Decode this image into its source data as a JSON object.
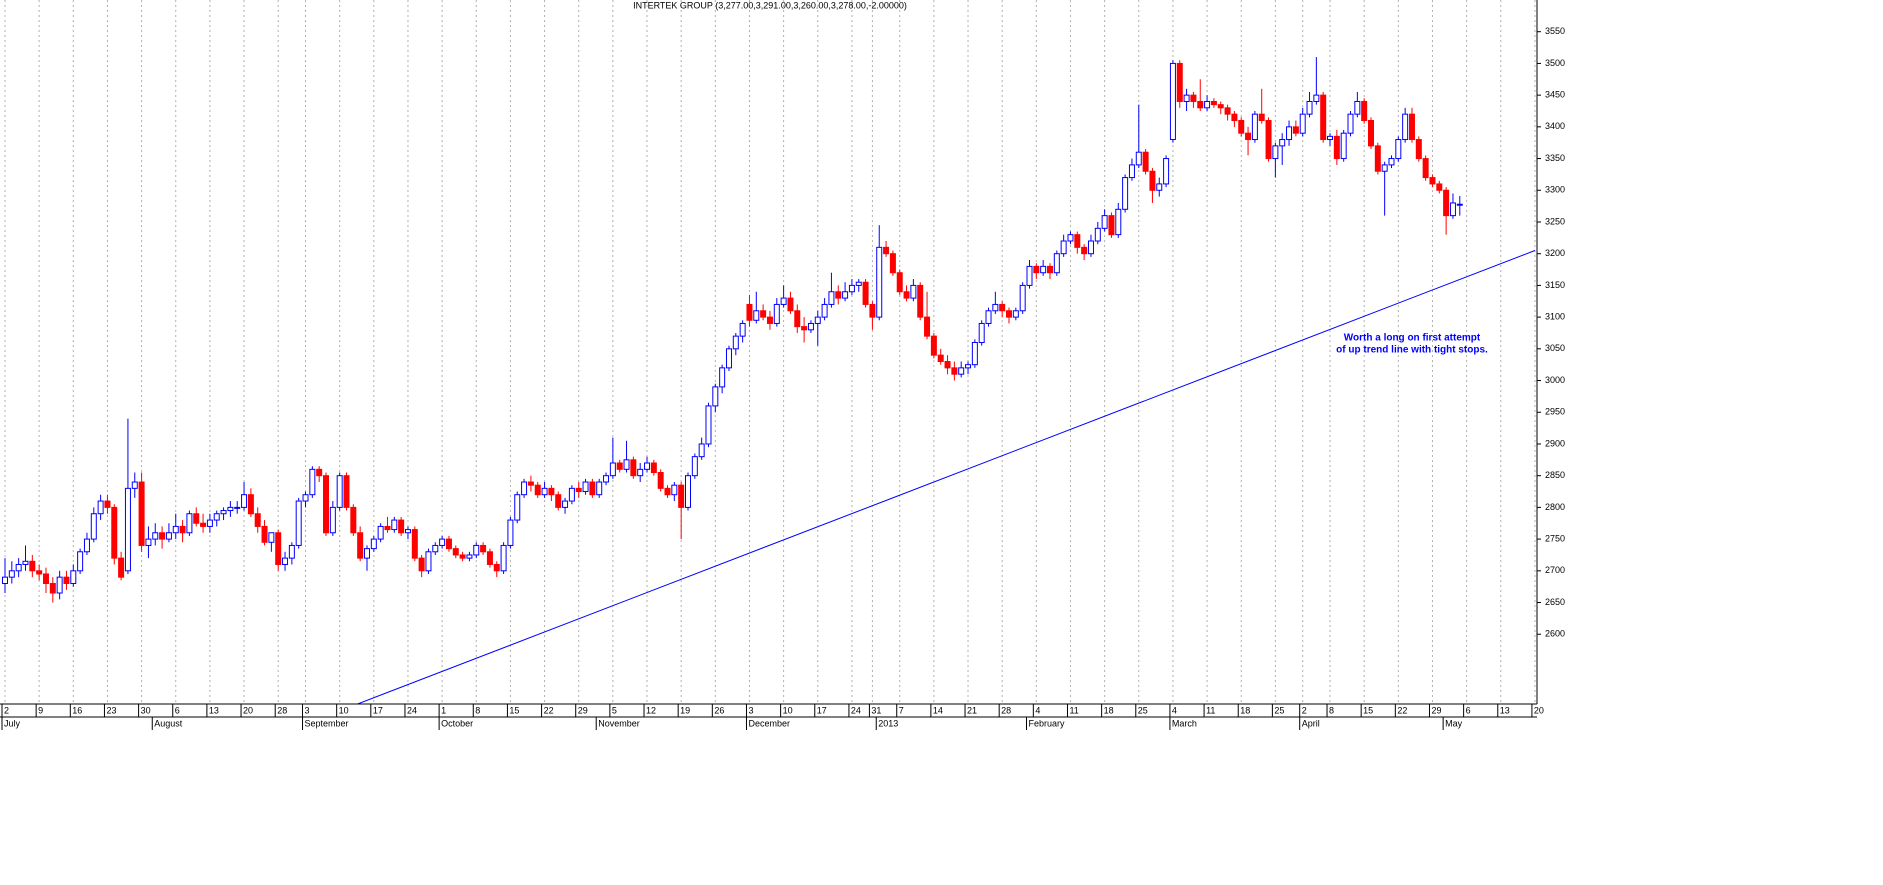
{
  "chart_data": {
    "type": "candlestick",
    "title": "INTERTEK GROUP (3,277.00,3,291.00,3,260.00,3,278.00,-2.00000)",
    "up_color": "#0000ff",
    "down_color": "#ff0000",
    "ylim": [
      2490,
      3600
    ],
    "yticks": [
      2600,
      2650,
      2700,
      2750,
      2800,
      2850,
      2900,
      2950,
      3000,
      3050,
      3100,
      3150,
      3200,
      3250,
      3300,
      3350,
      3400,
      3450,
      3500,
      3550
    ],
    "categories": [
      "2",
      null,
      null,
      null,
      null,
      "9",
      null,
      null,
      null,
      null,
      "16",
      null,
      null,
      null,
      null,
      "23",
      null,
      null,
      null,
      null,
      "30",
      null,
      null,
      null,
      null,
      "6",
      null,
      null,
      null,
      null,
      "13",
      null,
      null,
      null,
      null,
      "20",
      null,
      null,
      null,
      null,
      "28",
      null,
      null,
      null,
      "3",
      null,
      null,
      null,
      null,
      "10",
      null,
      null,
      null,
      null,
      "17",
      null,
      null,
      null,
      null,
      "24",
      null,
      null,
      null,
      null,
      "1",
      null,
      null,
      null,
      null,
      "8",
      null,
      null,
      null,
      null,
      "15",
      null,
      null,
      null,
      null,
      "22",
      null,
      null,
      null,
      null,
      "29",
      null,
      null,
      null,
      null,
      "5",
      null,
      null,
      null,
      null,
      "12",
      null,
      null,
      null,
      null,
      "19",
      null,
      null,
      null,
      null,
      "26",
      null,
      null,
      null,
      null,
      "3",
      null,
      null,
      null,
      null,
      "10",
      null,
      null,
      null,
      null,
      "17",
      null,
      null,
      null,
      null,
      "24",
      null,
      null,
      "31",
      null,
      null,
      null,
      "7",
      null,
      null,
      null,
      null,
      "14",
      null,
      null,
      null,
      null,
      "21",
      null,
      null,
      null,
      null,
      "28",
      null,
      null,
      null,
      null,
      "4",
      null,
      null,
      null,
      null,
      "11",
      null,
      null,
      null,
      null,
      "18",
      null,
      null,
      null,
      null,
      "25",
      null,
      null,
      null,
      null,
      "4",
      null,
      null,
      null,
      null,
      "11",
      null,
      null,
      null,
      null,
      "18",
      null,
      null,
      null,
      null,
      "25",
      null,
      null,
      null,
      "2",
      null,
      null,
      null,
      "8",
      null,
      null,
      null,
      null,
      "15",
      null,
      null,
      null,
      null,
      "22",
      null,
      null,
      null,
      null,
      "29",
      null,
      null,
      null,
      null,
      "6",
      null,
      null,
      null,
      null,
      "13",
      null,
      null,
      null,
      null,
      "20"
    ],
    "months": [
      {
        "label": "July",
        "at": 0
      },
      {
        "label": "August",
        "at": 22
      },
      {
        "label": "September",
        "at": 44
      },
      {
        "label": "October",
        "at": 64
      },
      {
        "label": "November",
        "at": 87
      },
      {
        "label": "December",
        "at": 109
      },
      {
        "label": "2013",
        "at": 128
      },
      {
        "label": "February",
        "at": 150
      },
      {
        "label": "March",
        "at": 171
      },
      {
        "label": "April",
        "at": 190
      },
      {
        "label": "May",
        "at": 211
      }
    ],
    "ohlc": [
      [
        2680,
        2720,
        2665,
        2690
      ],
      [
        2690,
        2715,
        2680,
        2700
      ],
      [
        2700,
        2720,
        2690,
        2710
      ],
      [
        2710,
        2740,
        2700,
        2715
      ],
      [
        2715,
        2725,
        2690,
        2700
      ],
      [
        2700,
        2710,
        2685,
        2695
      ],
      [
        2695,
        2705,
        2665,
        2680
      ],
      [
        2680,
        2690,
        2650,
        2665
      ],
      [
        2665,
        2700,
        2655,
        2690
      ],
      [
        2690,
        2700,
        2670,
        2680
      ],
      [
        2680,
        2710,
        2675,
        2700
      ],
      [
        2700,
        2735,
        2695,
        2730
      ],
      [
        2730,
        2760,
        2725,
        2750
      ],
      [
        2750,
        2800,
        2745,
        2790
      ],
      [
        2790,
        2820,
        2780,
        2810
      ],
      [
        2810,
        2820,
        2790,
        2800
      ],
      [
        2800,
        2805,
        2710,
        2720
      ],
      [
        2720,
        2730,
        2685,
        2690
      ],
      [
        2700,
        2940,
        2695,
        2830
      ],
      [
        2830,
        2855,
        2815,
        2840
      ],
      [
        2840,
        2855,
        2730,
        2740
      ],
      [
        2740,
        2770,
        2720,
        2750
      ],
      [
        2750,
        2775,
        2740,
        2760
      ],
      [
        2760,
        2770,
        2735,
        2750
      ],
      [
        2750,
        2775,
        2745,
        2760
      ],
      [
        2760,
        2790,
        2750,
        2770
      ],
      [
        2770,
        2780,
        2745,
        2760
      ],
      [
        2760,
        2795,
        2755,
        2790
      ],
      [
        2790,
        2800,
        2770,
        2775
      ],
      [
        2775,
        2790,
        2760,
        2770
      ],
      [
        2770,
        2790,
        2760,
        2780
      ],
      [
        2780,
        2795,
        2770,
        2790
      ],
      [
        2790,
        2800,
        2780,
        2795
      ],
      [
        2795,
        2810,
        2785,
        2800
      ],
      [
        2800,
        2810,
        2790,
        2800
      ],
      [
        2800,
        2840,
        2795,
        2820
      ],
      [
        2820,
        2830,
        2785,
        2790
      ],
      [
        2790,
        2800,
        2760,
        2770
      ],
      [
        2770,
        2780,
        2740,
        2745
      ],
      [
        2745,
        2760,
        2730,
        2760
      ],
      [
        2760,
        2765,
        2700,
        2710
      ],
      [
        2710,
        2730,
        2700,
        2720
      ],
      [
        2720,
        2745,
        2710,
        2740
      ],
      [
        2740,
        2815,
        2735,
        2810
      ],
      [
        2810,
        2825,
        2800,
        2820
      ],
      [
        2820,
        2865,
        2815,
        2860
      ],
      [
        2860,
        2865,
        2840,
        2850
      ],
      [
        2850,
        2855,
        2755,
        2760
      ],
      [
        2760,
        2810,
        2755,
        2800
      ],
      [
        2800,
        2855,
        2795,
        2850
      ],
      [
        2850,
        2855,
        2795,
        2800
      ],
      [
        2800,
        2805,
        2755,
        2760
      ],
      [
        2760,
        2770,
        2715,
        2720
      ],
      [
        2720,
        2740,
        2700,
        2735
      ],
      [
        2735,
        2755,
        2730,
        2750
      ],
      [
        2750,
        2775,
        2745,
        2770
      ],
      [
        2770,
        2785,
        2760,
        2765
      ],
      [
        2765,
        2785,
        2760,
        2780
      ],
      [
        2780,
        2785,
        2755,
        2760
      ],
      [
        2760,
        2770,
        2750,
        2765
      ],
      [
        2765,
        2770,
        2715,
        2720
      ],
      [
        2720,
        2725,
        2690,
        2700
      ],
      [
        2700,
        2735,
        2695,
        2730
      ],
      [
        2730,
        2745,
        2725,
        2740
      ],
      [
        2740,
        2755,
        2735,
        2750
      ],
      [
        2750,
        2755,
        2730,
        2735
      ],
      [
        2735,
        2740,
        2720,
        2725
      ],
      [
        2725,
        2730,
        2715,
        2720
      ],
      [
        2720,
        2730,
        2715,
        2725
      ],
      [
        2725,
        2745,
        2720,
        2740
      ],
      [
        2740,
        2745,
        2725,
        2730
      ],
      [
        2730,
        2735,
        2705,
        2710
      ],
      [
        2710,
        2715,
        2690,
        2700
      ],
      [
        2700,
        2745,
        2695,
        2740
      ],
      [
        2740,
        2785,
        2735,
        2780
      ],
      [
        2780,
        2825,
        2775,
        2820
      ],
      [
        2820,
        2845,
        2815,
        2840
      ],
      [
        2840,
        2850,
        2825,
        2835
      ],
      [
        2835,
        2840,
        2815,
        2820
      ],
      [
        2820,
        2840,
        2815,
        2830
      ],
      [
        2830,
        2835,
        2810,
        2820
      ],
      [
        2820,
        2825,
        2795,
        2800
      ],
      [
        2800,
        2815,
        2790,
        2810
      ],
      [
        2810,
        2835,
        2805,
        2830
      ],
      [
        2830,
        2840,
        2815,
        2825
      ],
      [
        2825,
        2845,
        2820,
        2840
      ],
      [
        2840,
        2845,
        2815,
        2820
      ],
      [
        2820,
        2845,
        2815,
        2840
      ],
      [
        2840,
        2855,
        2835,
        2850
      ],
      [
        2850,
        2910,
        2845,
        2870
      ],
      [
        2870,
        2875,
        2855,
        2860
      ],
      [
        2860,
        2905,
        2855,
        2875
      ],
      [
        2875,
        2880,
        2845,
        2850
      ],
      [
        2850,
        2870,
        2840,
        2860
      ],
      [
        2860,
        2880,
        2855,
        2870
      ],
      [
        2870,
        2875,
        2850,
        2855
      ],
      [
        2855,
        2860,
        2825,
        2830
      ],
      [
        2830,
        2835,
        2815,
        2820
      ],
      [
        2820,
        2840,
        2810,
        2835
      ],
      [
        2835,
        2840,
        2750,
        2800
      ],
      [
        2800,
        2855,
        2795,
        2850
      ],
      [
        2850,
        2885,
        2845,
        2880
      ],
      [
        2880,
        2910,
        2875,
        2900
      ],
      [
        2900,
        2965,
        2895,
        2960
      ],
      [
        2960,
        2995,
        2950,
        2990
      ],
      [
        2990,
        3025,
        2980,
        3020
      ],
      [
        3020,
        3055,
        3015,
        3050
      ],
      [
        3050,
        3075,
        3040,
        3070
      ],
      [
        3070,
        3095,
        3060,
        3090
      ],
      [
        3120,
        3135,
        3085,
        3095
      ],
      [
        3095,
        3140,
        3090,
        3110
      ],
      [
        3110,
        3120,
        3095,
        3100
      ],
      [
        3100,
        3110,
        3080,
        3090
      ],
      [
        3090,
        3130,
        3085,
        3120
      ],
      [
        3120,
        3150,
        3115,
        3130
      ],
      [
        3130,
        3140,
        3105,
        3110
      ],
      [
        3110,
        3120,
        3075,
        3085
      ],
      [
        3085,
        3100,
        3060,
        3080
      ],
      [
        3080,
        3095,
        3075,
        3090
      ],
      [
        3090,
        3110,
        3055,
        3100
      ],
      [
        3100,
        3130,
        3095,
        3120
      ],
      [
        3120,
        3170,
        3115,
        3140
      ],
      [
        3140,
        3150,
        3120,
        3130
      ],
      [
        3130,
        3155,
        3125,
        3140
      ],
      [
        3140,
        3160,
        3135,
        3150
      ],
      [
        3150,
        3160,
        3140,
        3155
      ],
      [
        3155,
        3160,
        3115,
        3120
      ],
      [
        3120,
        3125,
        3080,
        3100
      ],
      [
        3100,
        3245,
        3095,
        3210
      ],
      [
        3210,
        3220,
        3195,
        3200
      ],
      [
        3200,
        3205,
        3165,
        3170
      ],
      [
        3170,
        3175,
        3135,
        3140
      ],
      [
        3140,
        3150,
        3125,
        3130
      ],
      [
        3130,
        3160,
        3125,
        3150
      ],
      [
        3150,
        3155,
        3095,
        3100
      ],
      [
        3100,
        3140,
        3065,
        3070
      ],
      [
        3070,
        3075,
        3035,
        3040
      ],
      [
        3040,
        3050,
        3025,
        3030
      ],
      [
        3030,
        3040,
        3010,
        3020
      ],
      [
        3020,
        3030,
        3000,
        3010
      ],
      [
        3010,
        3030,
        3005,
        3020
      ],
      [
        3020,
        3030,
        3010,
        3025
      ],
      [
        3025,
        3065,
        3020,
        3060
      ],
      [
        3060,
        3095,
        3055,
        3090
      ],
      [
        3090,
        3115,
        3085,
        3110
      ],
      [
        3110,
        3140,
        3105,
        3120
      ],
      [
        3120,
        3125,
        3100,
        3110
      ],
      [
        3110,
        3115,
        3090,
        3100
      ],
      [
        3100,
        3115,
        3095,
        3110
      ],
      [
        3110,
        3155,
        3105,
        3150
      ],
      [
        3150,
        3190,
        3145,
        3180
      ],
      [
        3180,
        3185,
        3160,
        3170
      ],
      [
        3170,
        3190,
        3165,
        3180
      ],
      [
        3180,
        3185,
        3160,
        3170
      ],
      [
        3170,
        3205,
        3165,
        3200
      ],
      [
        3200,
        3230,
        3195,
        3220
      ],
      [
        3220,
        3235,
        3215,
        3230
      ],
      [
        3230,
        3235,
        3200,
        3210
      ],
      [
        3210,
        3215,
        3190,
        3200
      ],
      [
        3200,
        3230,
        3195,
        3220
      ],
      [
        3220,
        3250,
        3215,
        3240
      ],
      [
        3240,
        3270,
        3235,
        3260
      ],
      [
        3260,
        3265,
        3225,
        3230
      ],
      [
        3230,
        3280,
        3225,
        3270
      ],
      [
        3270,
        3325,
        3265,
        3320
      ],
      [
        3320,
        3350,
        3315,
        3340
      ],
      [
        3340,
        3435,
        3335,
        3360
      ],
      [
        3360,
        3365,
        3325,
        3330
      ],
      [
        3330,
        3335,
        3280,
        3300
      ],
      [
        3300,
        3320,
        3290,
        3310
      ],
      [
        3310,
        3355,
        3305,
        3350
      ],
      [
        3380,
        3505,
        3375,
        3500
      ],
      [
        3500,
        3505,
        3430,
        3440
      ],
      [
        3440,
        3460,
        3425,
        3450
      ],
      [
        3450,
        3455,
        3430,
        3440
      ],
      [
        3440,
        3475,
        3425,
        3430
      ],
      [
        3430,
        3450,
        3425,
        3440
      ],
      [
        3440,
        3445,
        3430,
        3435
      ],
      [
        3435,
        3440,
        3420,
        3430
      ],
      [
        3430,
        3435,
        3410,
        3420
      ],
      [
        3420,
        3425,
        3400,
        3410
      ],
      [
        3410,
        3415,
        3385,
        3390
      ],
      [
        3390,
        3400,
        3355,
        3380
      ],
      [
        3380,
        3425,
        3375,
        3420
      ],
      [
        3420,
        3460,
        3405,
        3410
      ],
      [
        3410,
        3415,
        3345,
        3350
      ],
      [
        3350,
        3375,
        3320,
        3370
      ],
      [
        3370,
        3390,
        3340,
        3380
      ],
      [
        3380,
        3410,
        3370,
        3400
      ],
      [
        3400,
        3410,
        3385,
        3390
      ],
      [
        3390,
        3430,
        3385,
        3420
      ],
      [
        3420,
        3455,
        3415,
        3440
      ],
      [
        3440,
        3510,
        3435,
        3450
      ],
      [
        3450,
        3455,
        3375,
        3380
      ],
      [
        3380,
        3390,
        3370,
        3385
      ],
      [
        3385,
        3395,
        3340,
        3350
      ],
      [
        3350,
        3395,
        3345,
        3390
      ],
      [
        3390,
        3425,
        3385,
        3420
      ],
      [
        3420,
        3455,
        3415,
        3440
      ],
      [
        3440,
        3445,
        3405,
        3410
      ],
      [
        3410,
        3415,
        3365,
        3370
      ],
      [
        3370,
        3375,
        3325,
        3330
      ],
      [
        3330,
        3345,
        3260,
        3340
      ],
      [
        3340,
        3355,
        3335,
        3350
      ],
      [
        3350,
        3385,
        3345,
        3380
      ],
      [
        3380,
        3430,
        3375,
        3420
      ],
      [
        3420,
        3430,
        3375,
        3380
      ],
      [
        3380,
        3385,
        3345,
        3350
      ],
      [
        3350,
        3355,
        3315,
        3320
      ],
      [
        3320,
        3325,
        3305,
        3310
      ],
      [
        3310,
        3315,
        3295,
        3300
      ],
      [
        3300,
        3305,
        3230,
        3260
      ],
      [
        3260,
        3295,
        3255,
        3280
      ],
      [
        3277,
        3291,
        3260,
        3278
      ],
      null,
      null,
      null,
      null,
      null,
      null,
      null,
      null,
      null,
      null,
      null
    ],
    "trendline": {
      "x": [
        48,
        224
      ],
      "y": [
        2475,
        3205
      ],
      "color": "#0000ff"
    },
    "annotation": [
      "Worth a long on first attempt",
      "of up trend line with tight stops."
    ]
  }
}
